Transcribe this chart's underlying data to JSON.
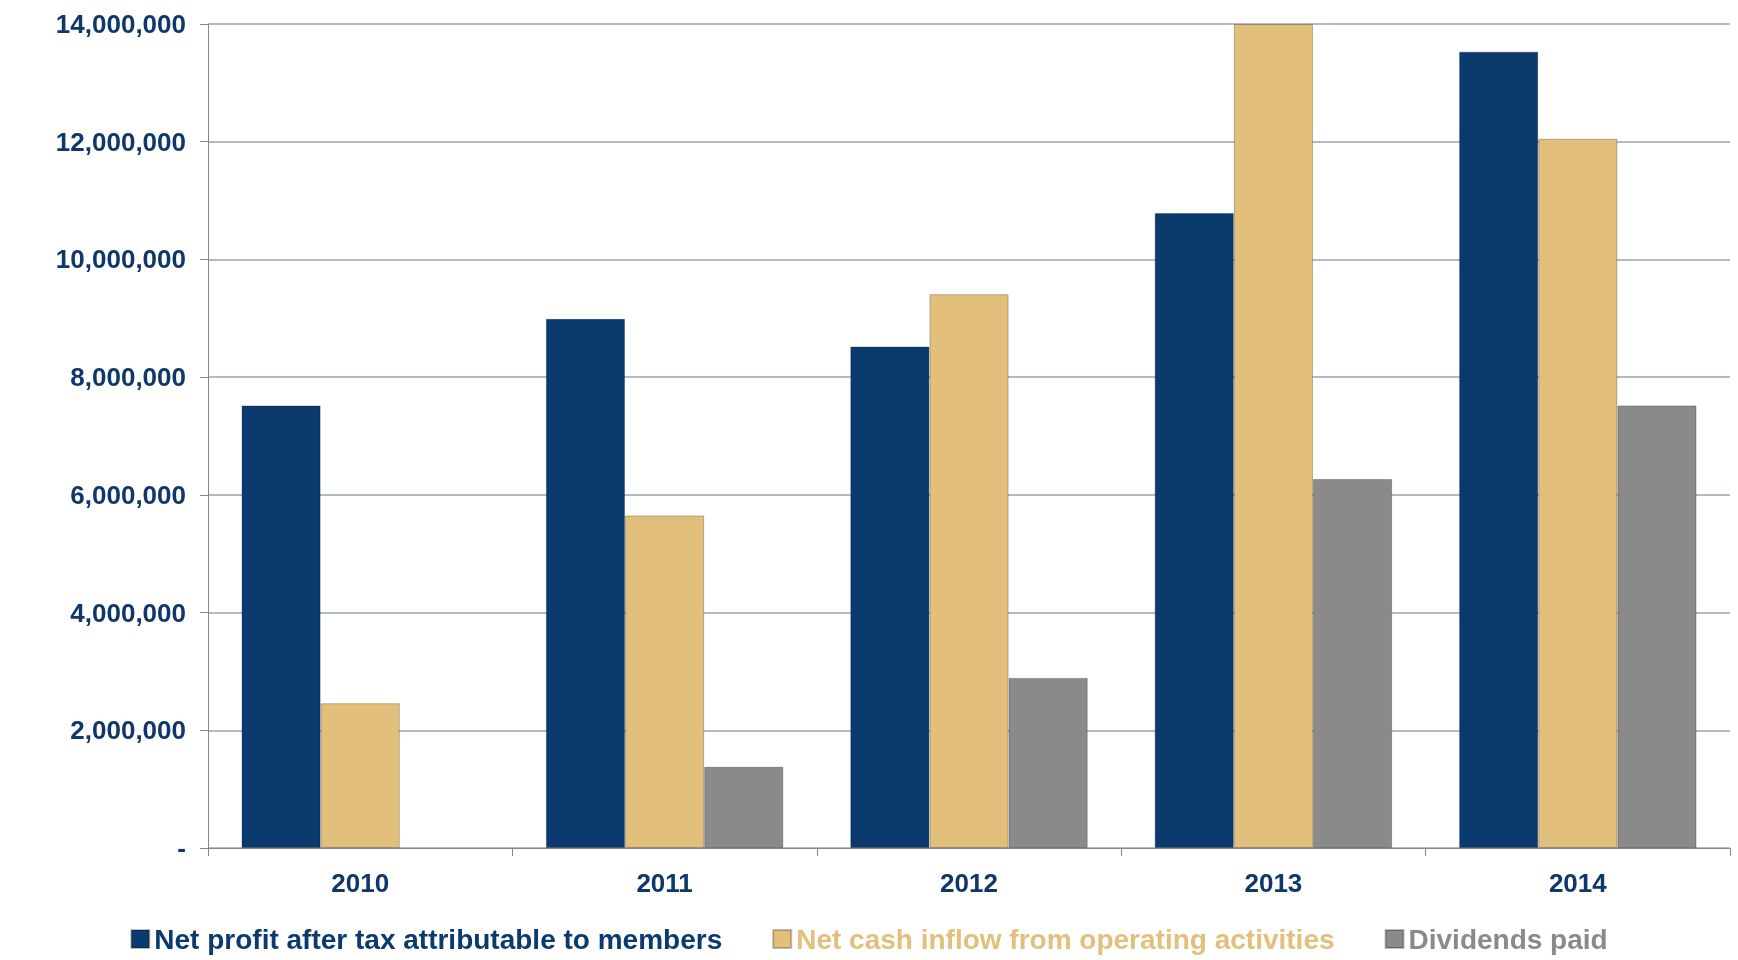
{
  "chart_data": {
    "type": "bar",
    "categories": [
      "2010",
      "2011",
      "2012",
      "2013",
      "2014"
    ],
    "series": [
      {
        "name": "Net profit after tax attributable to members",
        "color": "#0b3a6f",
        "values": [
          7520000,
          8990000,
          8520000,
          10790000,
          13530000
        ]
      },
      {
        "name": "Net cash inflow from operating activities",
        "color": "#e2c07c",
        "values": [
          2460000,
          5650000,
          9410000,
          14000000,
          12050000
        ]
      },
      {
        "name": "Dividends paid",
        "color": "#8a8a8a",
        "values": [
          null,
          1380000,
          2890000,
          6270000,
          7520000
        ]
      }
    ],
    "ylim": [
      0,
      14000000
    ],
    "yticks": [
      {
        "value": 0,
        "label": "-"
      },
      {
        "value": 2000000,
        "label": "2,000,000"
      },
      {
        "value": 4000000,
        "label": "4,000,000"
      },
      {
        "value": 6000000,
        "label": "6,000,000"
      },
      {
        "value": 8000000,
        "label": "8,000,000"
      },
      {
        "value": 10000000,
        "label": "10,000,000"
      },
      {
        "value": 12000000,
        "label": "12,000,000"
      },
      {
        "value": 14000000,
        "label": "14,000,000"
      }
    ],
    "grid": "y",
    "legend": "bottom"
  }
}
